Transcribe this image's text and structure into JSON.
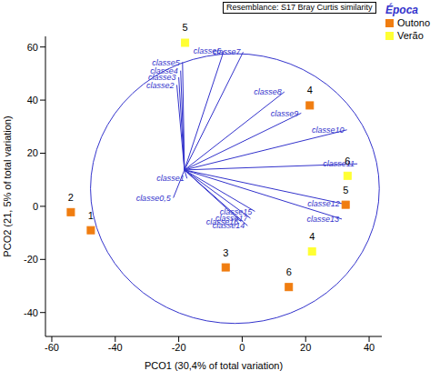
{
  "chart_data": {
    "type": "scatter",
    "x_label": "PCO1 (30,4% of total variation)",
    "y_label": "PCO2 (21, 5% of total variation)",
    "annotations": [
      "Resemblance: S17 Bray Curtis similarity"
    ],
    "legend_title": "Época",
    "legend": "top right",
    "marker": "square",
    "xlim": [
      -62,
      44
    ],
    "xticks": [
      -60,
      -40,
      -20,
      0,
      20,
      40
    ],
    "ylim": [
      -49,
      64
    ],
    "yticks": [
      -40,
      -20,
      0,
      20,
      40,
      60
    ],
    "series": [
      {
        "name": "Outono",
        "color": "#f07d10",
        "points": [
          {
            "label": "2",
            "x": -54,
            "y": -2.2
          },
          {
            "label": "1",
            "x": -47.7,
            "y": -9
          },
          {
            "label": "3",
            "x": -5.2,
            "y": -23
          },
          {
            "label": "6",
            "x": 14.7,
            "y": -30.4
          },
          {
            "label": "5",
            "x": 32.6,
            "y": 0.6
          },
          {
            "label": "4",
            "x": 21.3,
            "y": 38
          }
        ]
      },
      {
        "name": "Verão",
        "color": "#ffff33",
        "points": [
          {
            "label": "5",
            "x": -18,
            "y": 61.6
          },
          {
            "label": "6",
            "x": 33.2,
            "y": 11.5
          },
          {
            "label": "4",
            "x": 22,
            "y": -17
          }
        ]
      }
    ],
    "vector_origin": [
      -18.2,
      13.7
    ],
    "vectors": [
      {
        "name": "classe0,5",
        "x": -21.7,
        "y": 3.2
      },
      {
        "name": "classe1",
        "x": -17.4,
        "y": 10.5
      },
      {
        "name": "classe2",
        "x": -20.6,
        "y": 45.7
      },
      {
        "name": "classe3",
        "x": -20,
        "y": 48.6
      },
      {
        "name": "classe4",
        "x": -19.4,
        "y": 51.1
      },
      {
        "name": "classe5",
        "x": -18.8,
        "y": 54.3
      },
      {
        "name": "classe6",
        "x": -5.8,
        "y": 58.5
      },
      {
        "name": "classe7",
        "x": 0.3,
        "y": 58.1
      },
      {
        "name": "classe8",
        "x": 13.3,
        "y": 43.1
      },
      {
        "name": "classe9",
        "x": 18.6,
        "y": 35.1
      },
      {
        "name": "classe10",
        "x": 33,
        "y": 28.8
      },
      {
        "name": "classe11",
        "x": 36.3,
        "y": 16
      },
      {
        "name": "classe12",
        "x": 31.6,
        "y": 1
      },
      {
        "name": "classe13",
        "x": 31.4,
        "y": -4.8
      },
      {
        "name": "classe14",
        "x": 1.7,
        "y": -7.3
      },
      {
        "name": "classe15",
        "x": 4,
        "y": -1.9
      },
      {
        "name": "classe16",
        "x": -0.3,
        "y": -5.8
      },
      {
        "name": "classe17",
        "x": 2.6,
        "y": -4.5
      }
    ],
    "circle": {
      "x": [
        -47.8,
        43.2
      ],
      "y": [
        -44.1,
        57.5
      ]
    }
  }
}
